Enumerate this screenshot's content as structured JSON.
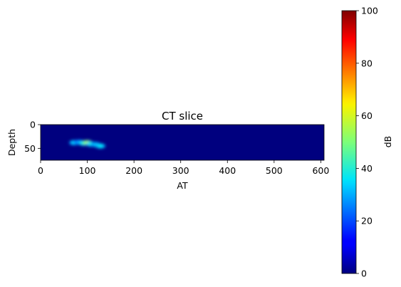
{
  "chart_data": {
    "type": "heatmap",
    "title": "CT slice",
    "xlabel": "AT",
    "ylabel": "Depth",
    "xlim": [
      0,
      607
    ],
    "ylim": [
      75,
      0
    ],
    "xticks": [
      0,
      100,
      200,
      300,
      400,
      500,
      600
    ],
    "yticks": [
      0,
      50
    ],
    "colormap": "jet",
    "background_value": 0,
    "hotspots": [
      {
        "x": 72,
        "y": 38,
        "value": 36
      },
      {
        "x": 82,
        "y": 37,
        "value": 30
      },
      {
        "x": 92,
        "y": 39,
        "value": 42
      },
      {
        "x": 100,
        "y": 38,
        "value": 58
      },
      {
        "x": 108,
        "y": 41,
        "value": 40
      },
      {
        "x": 118,
        "y": 42,
        "value": 34
      },
      {
        "x": 128,
        "y": 45,
        "value": 38
      }
    ],
    "colorbar": {
      "label": "dB",
      "min": 0,
      "max": 100,
      "ticks": [
        0,
        20,
        40,
        60,
        80,
        100
      ]
    }
  }
}
